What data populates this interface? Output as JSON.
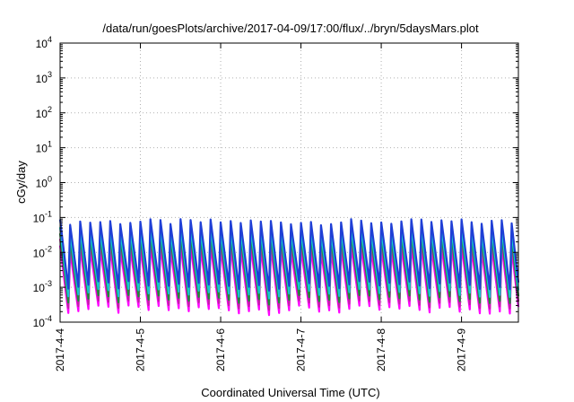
{
  "chart_data": {
    "type": "line",
    "title": "/data/run/goesPlots/archive/2017-04-09/17:00/flux/../bryn/5daysMars.plot",
    "xlabel": "Coordinated Universal Time (UTC)",
    "ylabel": "cGy/day",
    "yscale": "log",
    "ylim": [
      0.0001,
      10000
    ],
    "y_ticks": [
      {
        "base": "10",
        "exp": "-4"
      },
      {
        "base": "10",
        "exp": "-3"
      },
      {
        "base": "10",
        "exp": "-2"
      },
      {
        "base": "10",
        "exp": "-1"
      },
      {
        "base": "10",
        "exp": "0"
      },
      {
        "base": "10",
        "exp": "1"
      },
      {
        "base": "10",
        "exp": "2"
      },
      {
        "base": "10",
        "exp": "3"
      },
      {
        "base": "10",
        "exp": "4"
      }
    ],
    "xlim": [
      "2017-04-04T00:00",
      "2017-04-09T17:00"
    ],
    "x_ticks": [
      "2017-4-4",
      "2017-4-5",
      "2017-4-6",
      "2017-4-7",
      "2017-4-8",
      "2017-4-9"
    ],
    "grid": true,
    "pattern": {
      "period_hours": 3,
      "cycles": 46,
      "peak": [
        0.06,
        0.09
      ],
      "trough": [
        0.0008,
        0.0015
      ]
    },
    "series": [
      {
        "color": "#1f3fd6",
        "scale": 1.0
      },
      {
        "color": "#14c8d0",
        "scale": 0.6
      },
      {
        "color": "#1f8a3a",
        "scale": 0.4
      },
      {
        "color": "#c41ea8",
        "scale": 0.28
      },
      {
        "color": "#ff00ff",
        "scale": 0.18
      }
    ]
  }
}
